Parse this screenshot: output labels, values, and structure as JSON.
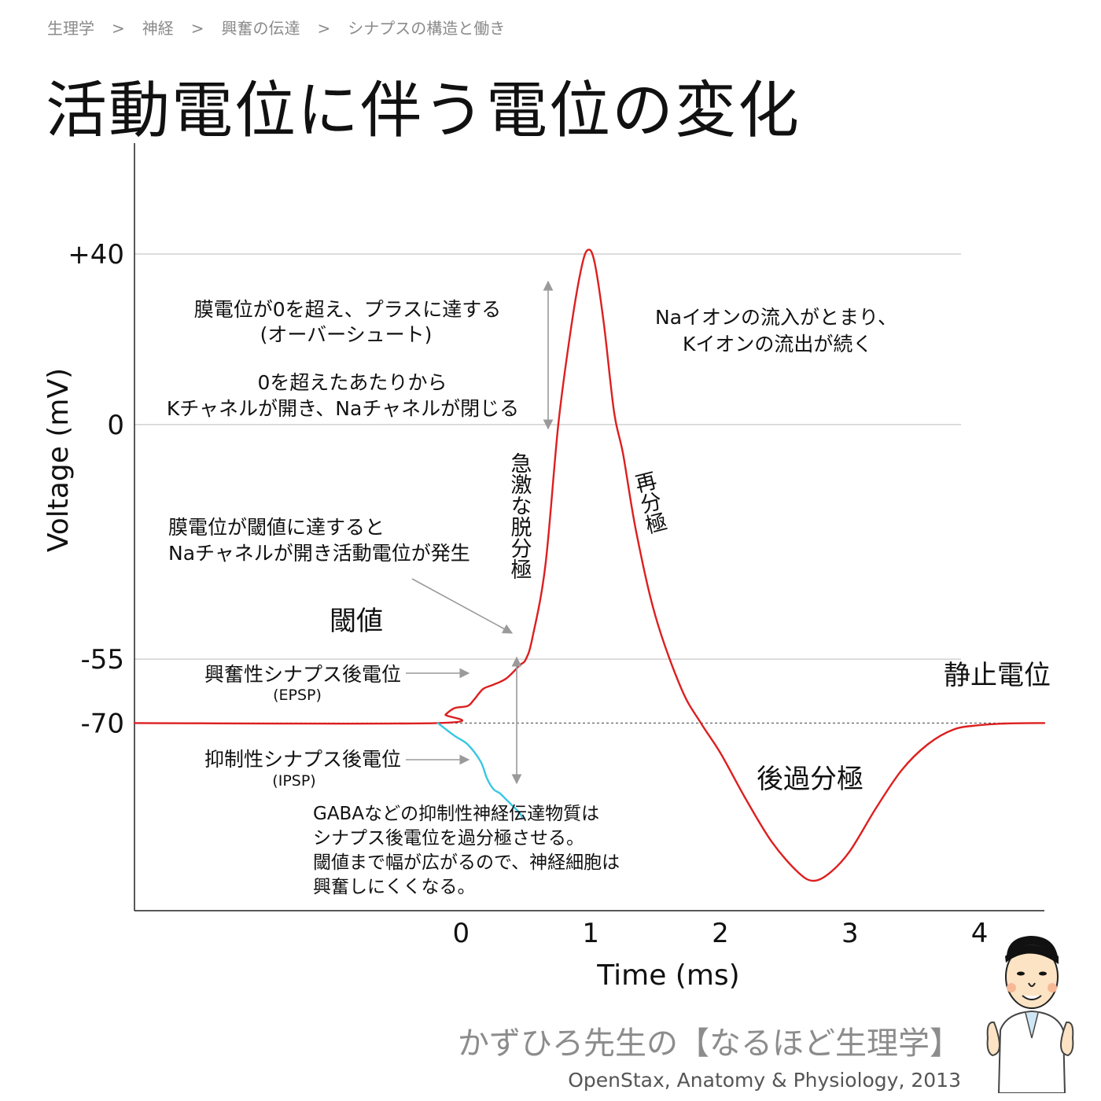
{
  "breadcrumb": [
    "生理学",
    "神経",
    "興奮の伝達",
    "シナプスの構造と働き"
  ],
  "breadcrumb_sep": ">",
  "title": "活動電位に伴う電位の変化",
  "chart_data": {
    "type": "line",
    "title": "活動電位に伴う電位の変化",
    "xlabel": "Time (ms)",
    "ylabel": "Voltage (mV)",
    "x_ticks": [
      0,
      1,
      2,
      3,
      4
    ],
    "x_tick_labels": [
      "0",
      "1",
      "2",
      "3",
      "4"
    ],
    "y_ticks": [
      40,
      0,
      -55,
      -70
    ],
    "y_tick_labels": [
      "+40",
      "0",
      "-55",
      "-70"
    ],
    "xlim": [
      -2.52,
      4.5
    ],
    "ylim": [
      -114,
      66
    ],
    "grid": "horizontal lines at +40, 0, -55; dashed line at -70",
    "series": [
      {
        "color": "#dd1f1f",
        "x": [
          -2.52,
          -0.18,
          -0.12,
          -0.05,
          0.05,
          0.1,
          0.17,
          0.25,
          0.35,
          0.45,
          0.5,
          0.55,
          0.65,
          0.75,
          0.85,
          0.93,
          0.98,
          1.03,
          1.1,
          1.18,
          1.25,
          1.35,
          1.5,
          1.7,
          1.85,
          2.0,
          2.2,
          2.4,
          2.6,
          2.72,
          2.85,
          3.0,
          3.2,
          3.4,
          3.6,
          3.8,
          4.0,
          4.2,
          4.5
        ],
        "values": [
          -70,
          -70,
          -68,
          -66.5,
          -66,
          -64.5,
          -62,
          -61,
          -59.5,
          -56.5,
          -55,
          -50,
          -33,
          0,
          23,
          37,
          41,
          38,
          24,
          3,
          -7,
          -25,
          -45,
          -62,
          -70,
          -77,
          -88,
          -98,
          -105,
          -107,
          -105,
          -100,
          -90,
          -81,
          -75,
          -71.5,
          -70.5,
          -70.1,
          -70
        ]
      },
      {
        "color": "#38c7e0",
        "x": [
          -0.18,
          -0.05,
          0.05,
          0.15,
          0.2,
          0.25,
          0.3,
          0.35,
          0.4,
          0.45,
          0.47
        ],
        "values": [
          -70,
          -73,
          -75,
          -79,
          -83,
          -85.5,
          -86.5,
          -88,
          -89.5,
          -91,
          -92
        ]
      }
    ],
    "annotations": [
      "膜電位が0を超え、プラスに達する",
      "(オーバーシュート)",
      "0を超えたあたりから",
      "Kチャネルが開き、Naチャネルが閉じる",
      "Naイオンの流入がとまり、",
      "Kイオンの流出が続く",
      "急激な脱分極",
      "再分極",
      "膜電位が閾値に達すると",
      "Naチャネルが開き活動電位が発生",
      "閾値",
      "興奮性シナプス後電位",
      "(EPSP)",
      "抑制性シナプス後電位",
      "(IPSP)",
      "静止電位",
      "後過分極",
      "GABAなどの抑制性神経伝達物質は",
      "シナプス後電位を過分極させる。",
      "閾値まで幅が広がるので、神経細胞は",
      "興奮しにくくなる。"
    ]
  },
  "footer": {
    "brand": "かずひろ先生の【なるほど生理学】",
    "source": "OpenStax, Anatomy & Physiology, 2013"
  },
  "colors": {
    "curve": "#dd1f1f",
    "ipsp": "#38c7e0",
    "grid": "#c8c8c8",
    "arrow": "#9a9a9a",
    "footer_brand": "#8c8c8c"
  }
}
